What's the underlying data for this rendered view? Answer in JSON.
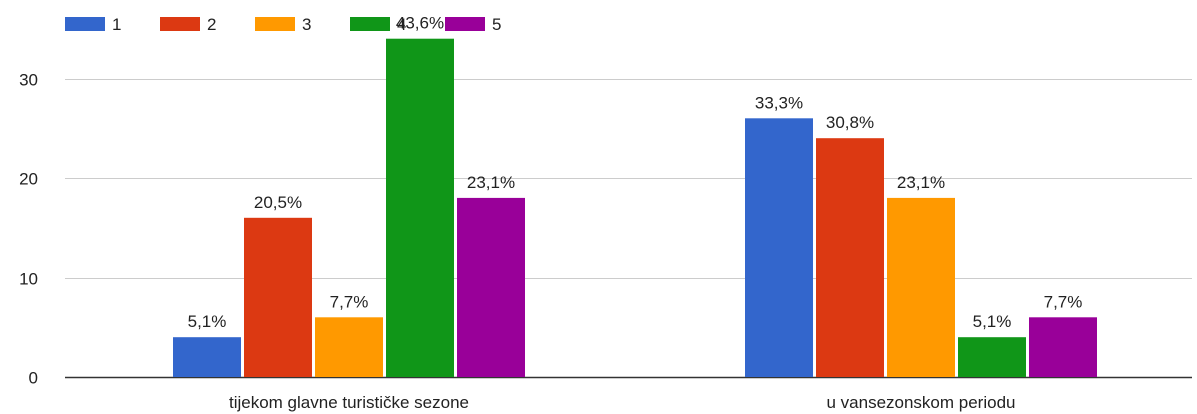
{
  "chart_data": {
    "type": "bar",
    "categories": [
      "tijekom glavne turističke sezone",
      "u vansezonskom periodu"
    ],
    "series": [
      {
        "name": "1",
        "color": "#3366cc",
        "values": [
          4,
          26
        ],
        "labels": [
          "5,1%",
          "33,3%"
        ]
      },
      {
        "name": "2",
        "color": "#dc3912",
        "values": [
          16,
          24
        ],
        "labels": [
          "20,5%",
          "30,8%"
        ]
      },
      {
        "name": "3",
        "color": "#ff9900",
        "values": [
          6,
          18
        ],
        "labels": [
          "7,7%",
          "23,1%"
        ]
      },
      {
        "name": "4",
        "color": "#109618",
        "values": [
          34,
          4
        ],
        "labels": [
          "43,6%",
          "5,1%"
        ]
      },
      {
        "name": "5",
        "color": "#990099",
        "values": [
          18,
          6
        ],
        "labels": [
          "23,1%",
          "7,7%"
        ]
      }
    ],
    "ylim": [
      0,
      34
    ],
    "yticks": [
      "0",
      "10",
      "20",
      "30"
    ],
    "ytick_values": [
      0,
      10,
      20,
      30
    ],
    "grid": true,
    "legend_position": "top-left"
  }
}
